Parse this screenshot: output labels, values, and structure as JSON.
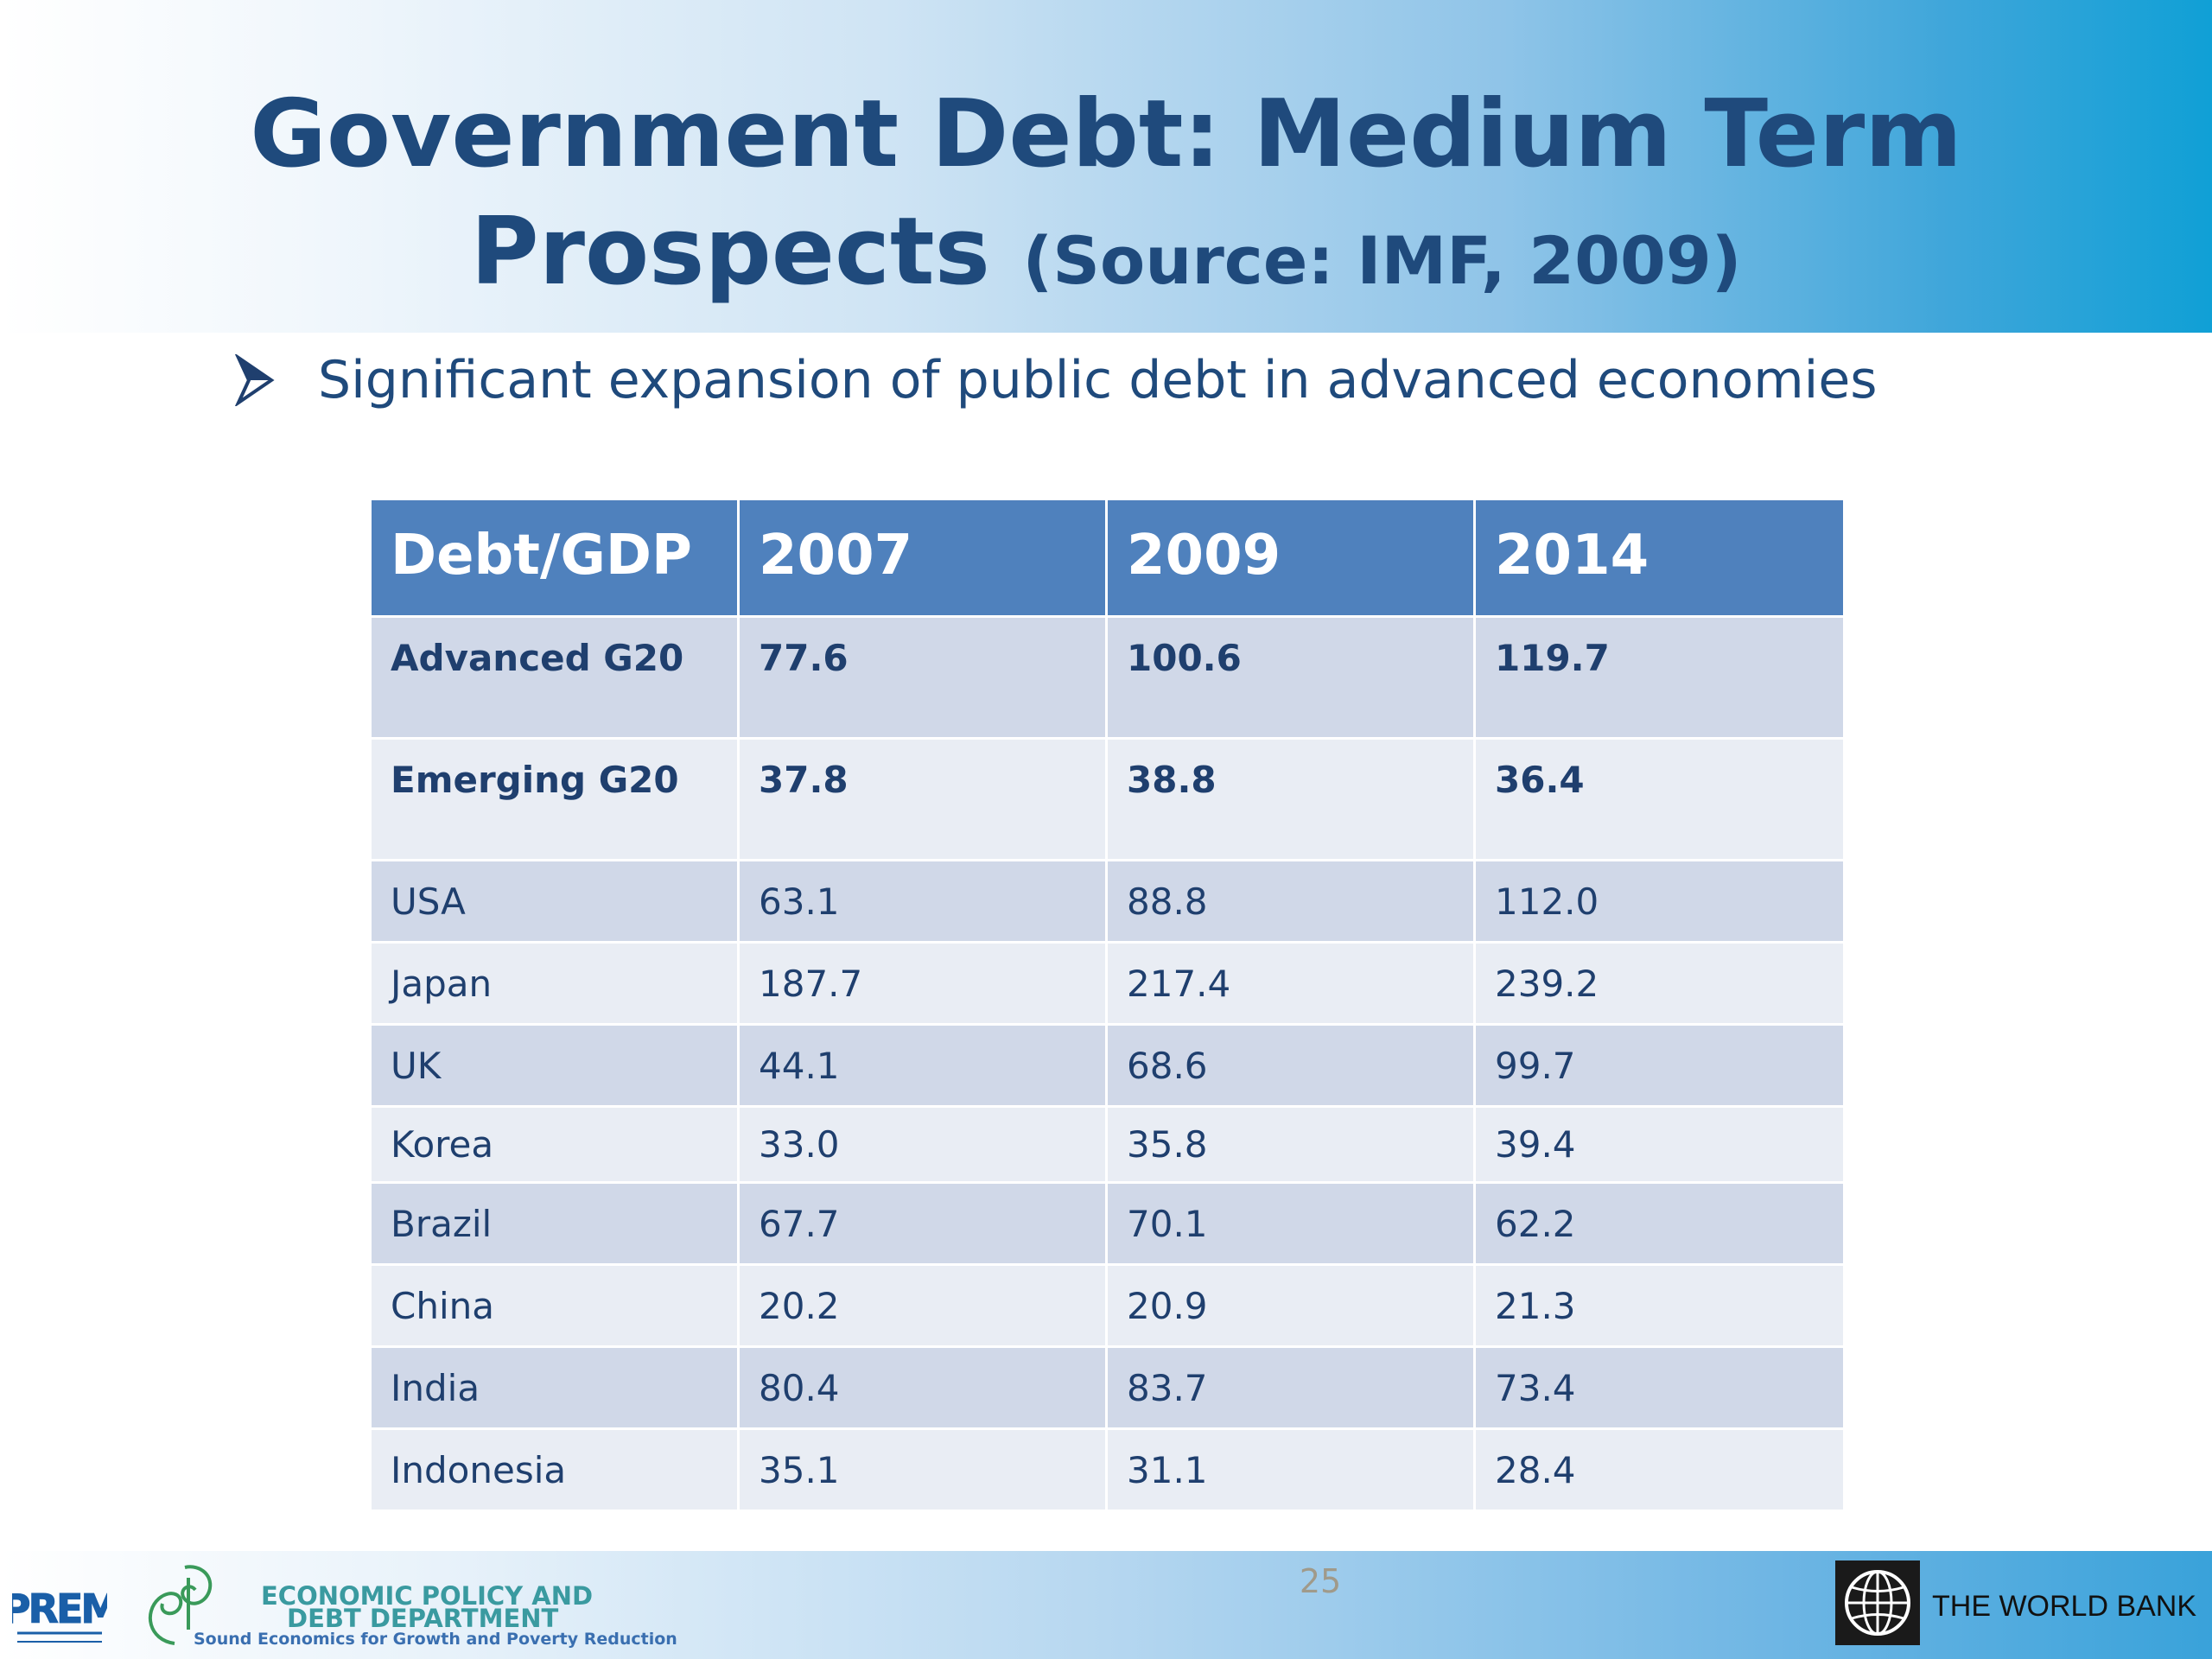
{
  "slide": {
    "title_main": "Government Debt: Medium Term",
    "title_second": "Prospects ",
    "title_source": "(Source: IMF, 2009)",
    "bullet": "Significant expansion of public debt in advanced economies",
    "page_number": "25"
  },
  "table": {
    "headers": [
      "Debt/GDP",
      "2007",
      "2009",
      "2014"
    ],
    "rows": [
      [
        "Advanced G20",
        "77.6",
        "100.6",
        "119.7"
      ],
      [
        "Emerging G20",
        "37.8",
        "38.8",
        "36.4"
      ],
      [
        "USA",
        "63.1",
        "88.8",
        "112.0"
      ],
      [
        "Japan",
        "187.7",
        "217.4",
        "239.2"
      ],
      [
        "UK",
        "44.1",
        "68.6",
        "99.7"
      ],
      [
        "Korea",
        "33.0",
        "35.8",
        "39.4"
      ],
      [
        "Brazil",
        "67.7",
        "70.1",
        "62.2"
      ],
      [
        "China",
        "20.2",
        "20.9",
        "21.3"
      ],
      [
        "India",
        "80.4",
        "83.7",
        "73.4"
      ],
      [
        "Indonesia",
        "35.1",
        "31.1",
        "28.4"
      ]
    ]
  },
  "footer": {
    "prem_logo": "PREM",
    "dept_line1": "ECONOMIC POLICY AND",
    "dept_line2": "DEBT DEPARTMENT",
    "dept_tagline": "Sound Economics for Growth and Poverty Reduction",
    "world_bank": "THE WORLD BANK"
  },
  "colors": {
    "title": "#1f4a7c",
    "table_header": "#4f81bd",
    "row_dark": "#d0d8e8",
    "row_light": "#e9edf4"
  }
}
